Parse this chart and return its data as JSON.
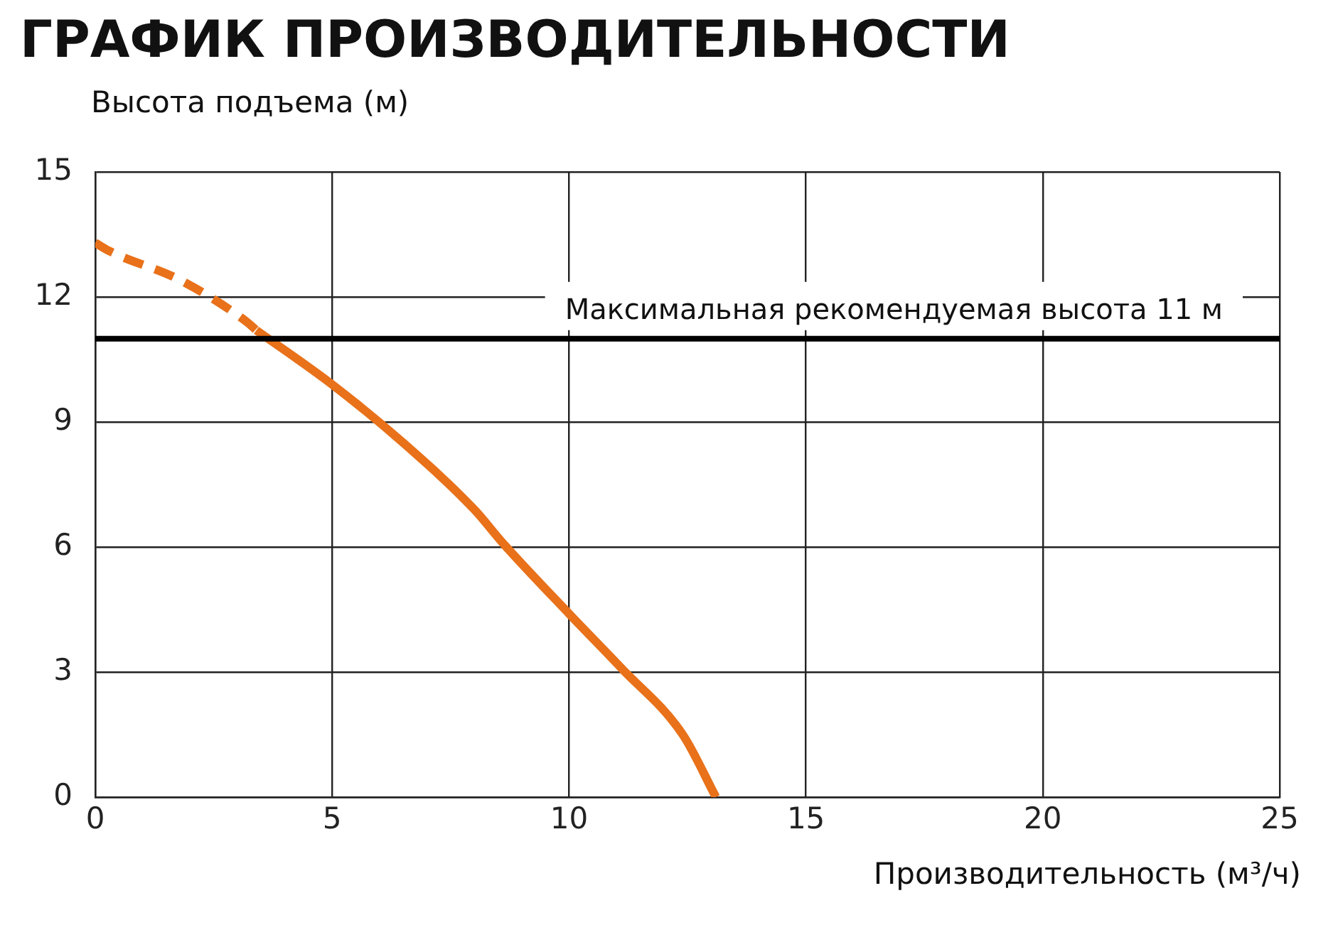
{
  "chart_data": {
    "type": "line",
    "title": "ГРАФИК ПРОИЗВОДИТЕЛЬНОСТИ",
    "xlabel": "Производительность (м³/ч)",
    "ylabel": "Высота подъема (м)",
    "series": [
      {
        "color": "#e8711a",
        "line_style": "dashed",
        "x": [
          0,
          0.3,
          1.8,
          3.2,
          3.4
        ],
        "values": [
          13.3,
          13.1,
          12.4,
          11.4,
          11.2
        ]
      },
      {
        "color": "#e8711a",
        "line_style": "solid",
        "x": [
          3.4,
          5,
          6.5,
          8,
          8.6,
          10,
          11.1,
          12.4,
          13.1
        ],
        "values": [
          11.2,
          9.9,
          8.5,
          6.9,
          6.1,
          4.4,
          3.1,
          1.5,
          0
        ]
      }
    ],
    "xlim": [
      0,
      25
    ],
    "xticks": [
      0,
      5,
      10,
      15,
      20,
      25
    ],
    "ylim": [
      0,
      15
    ],
    "yticks": [
      0,
      3,
      6,
      9,
      12,
      15
    ],
    "ref_lines": [
      {
        "axis": "y",
        "value": 11,
        "label": "Максимальная рекомендуемая высота 11 м",
        "color": "#000000"
      }
    ],
    "grid": true,
    "legend": false,
    "marker": "none"
  }
}
